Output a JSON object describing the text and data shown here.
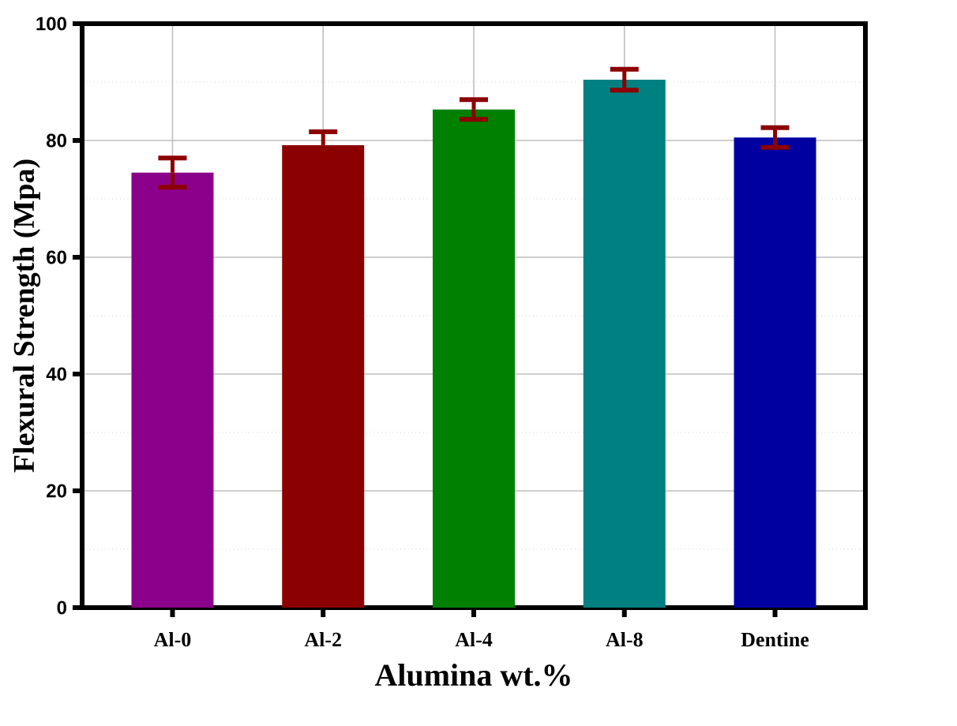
{
  "chart_data": {
    "type": "bar",
    "xlabel": "Alumina wt.%",
    "ylabel": "Flexural Strength (Mpa)",
    "categories": [
      "Al-0",
      "Al-2",
      "Al-4",
      "Al-8",
      "Dentine"
    ],
    "values": [
      74.5,
      79.2,
      85.3,
      90.4,
      80.5
    ],
    "errors": [
      2.5,
      2.3,
      1.7,
      1.8,
      1.7
    ],
    "colors": [
      "#8b008b",
      "#8b0000",
      "#008000",
      "#008080",
      "#0000a0"
    ],
    "ylim": [
      0,
      100
    ],
    "yticks": [
      0,
      20,
      40,
      60,
      80,
      100
    ],
    "grid": true
  }
}
